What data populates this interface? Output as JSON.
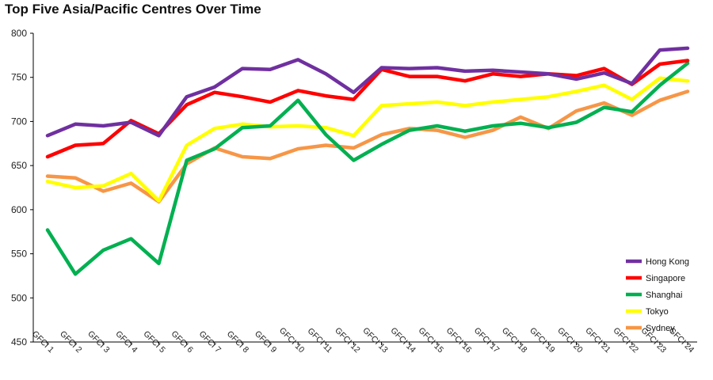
{
  "chart_data": {
    "type": "line",
    "title": "Top Five Asia/Pacific Centres Over Time",
    "xlabel": "",
    "ylabel": "",
    "ylim": [
      450,
      800
    ],
    "yticks": [
      450,
      500,
      550,
      600,
      650,
      700,
      750,
      800
    ],
    "grid": false,
    "legend_position": "bottom-right",
    "categories": [
      "GFCI 1",
      "GFCI 2",
      "GFCI 3",
      "GFCI 4",
      "GFCI 5",
      "GFCI 6",
      "GFCI 7",
      "GFCI 8",
      "GFCI 9",
      "GFCI 10",
      "GFCI 11",
      "GFCI 12",
      "GFCI 13",
      "GFCI 14",
      "GFCI 15",
      "GFCI 16",
      "GFCI 17",
      "GFCI 18",
      "GFCI 19",
      "GFCI 20",
      "GFCI 21",
      "GFCI 22",
      "GFCI 23",
      "GFCI 24"
    ],
    "series": [
      {
        "name": "Hong Kong",
        "color": "#7030A0",
        "values": [
          684,
          697,
          695,
          699,
          684,
          728,
          739,
          760,
          759,
          770,
          754,
          733,
          761,
          760,
          761,
          757,
          758,
          756,
          754,
          748,
          755,
          743,
          781,
          783
        ]
      },
      {
        "name": "Singapore",
        "color": "#FF0000",
        "values": [
          660,
          673,
          675,
          701,
          686,
          719,
          733,
          728,
          722,
          735,
          729,
          725,
          759,
          751,
          751,
          746,
          754,
          751,
          754,
          752,
          760,
          742,
          765,
          769
        ]
      },
      {
        "name": "Shanghai",
        "color": "#00B050",
        "values": [
          577,
          527,
          554,
          567,
          539,
          656,
          669,
          693,
          695,
          724,
          685,
          656,
          674,
          690,
          695,
          689,
          695,
          698,
          693,
          699,
          716,
          711,
          741,
          766
        ]
      },
      {
        "name": "Tokyo",
        "color": "#FFFF00",
        "values": [
          632,
          625,
          627,
          641,
          610,
          673,
          692,
          697,
          694,
          695,
          693,
          684,
          718,
          720,
          722,
          718,
          722,
          725,
          728,
          734,
          741,
          725,
          749,
          746
        ]
      },
      {
        "name": "Sydney",
        "color": "#F79646",
        "values": [
          638,
          636,
          621,
          630,
          609,
          652,
          670,
          660,
          658,
          669,
          673,
          670,
          685,
          692,
          690,
          682,
          690,
          705,
          692,
          712,
          721,
          707,
          724,
          734
        ]
      }
    ]
  }
}
